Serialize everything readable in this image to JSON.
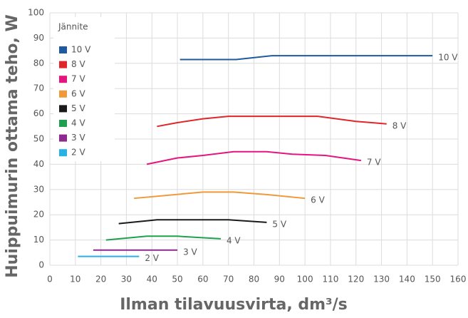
{
  "chart_data": {
    "type": "line",
    "xlabel": "Ilman tilavuusvirta, dm³/s",
    "ylabel": "Huippuimurin ottama teho, W",
    "legend_title": "Jännite",
    "legend": "top-left",
    "grid": true,
    "xlim": [
      0,
      160
    ],
    "xticks": [
      0,
      10,
      20,
      30,
      40,
      50,
      60,
      70,
      80,
      90,
      100,
      110,
      120,
      130,
      140,
      150,
      160
    ],
    "ylim": [
      0,
      100
    ],
    "yticks": [
      0,
      10,
      20,
      30,
      40,
      50,
      60,
      70,
      80,
      90,
      100
    ],
    "series": [
      {
        "name": "10 V",
        "color": "#1f5aa0",
        "x": [
          51,
          73,
          87,
          150
        ],
        "values": [
          81.5,
          81.5,
          83,
          83
        ]
      },
      {
        "name": "8 V",
        "color": "#e0262b",
        "x": [
          42,
          50,
          60,
          70,
          105,
          120,
          132
        ],
        "values": [
          55,
          56.5,
          58,
          59,
          59,
          57,
          56
        ]
      },
      {
        "name": "7 V",
        "color": "#e5157f",
        "x": [
          38,
          50,
          60,
          72,
          85,
          95,
          108,
          122
        ],
        "values": [
          40,
          42.5,
          43.5,
          45,
          45,
          44,
          43.5,
          41.5
        ]
      },
      {
        "name": "6 V",
        "color": "#f0993a",
        "x": [
          33,
          60,
          72,
          85,
          100
        ],
        "values": [
          26.5,
          29,
          29,
          28,
          26.5
        ]
      },
      {
        "name": "5 V",
        "color": "#1a1a1a",
        "x": [
          27,
          42,
          70,
          85
        ],
        "values": [
          16.5,
          18,
          18,
          17
        ]
      },
      {
        "name": "4 V",
        "color": "#1fa04f",
        "x": [
          22,
          38,
          50,
          67
        ],
        "values": [
          10,
          11.5,
          11.5,
          10.5
        ]
      },
      {
        "name": "3 V",
        "color": "#8e2a8e",
        "x": [
          17,
          50
        ],
        "values": [
          6,
          6
        ]
      },
      {
        "name": "2 V",
        "color": "#27b2e6",
        "x": [
          11,
          35
        ],
        "values": [
          3.5,
          3.5
        ]
      }
    ]
  }
}
